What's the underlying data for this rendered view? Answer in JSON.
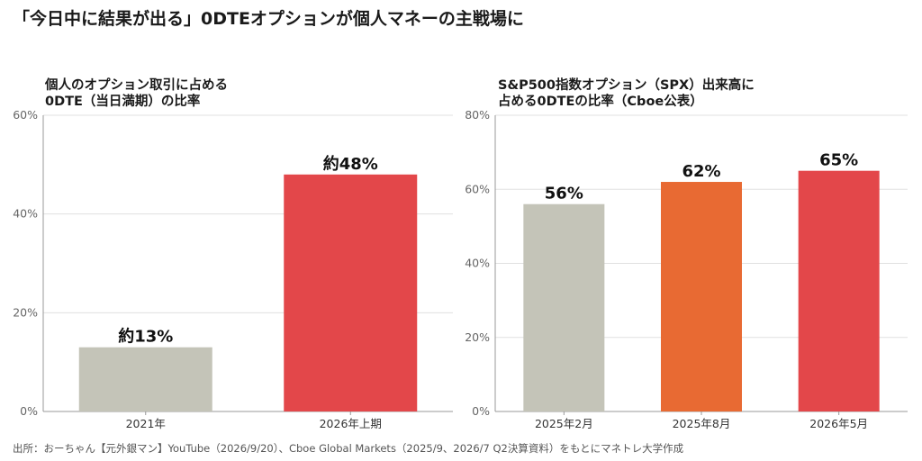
{
  "title": "「今日中に結果が出る」0DTEオプションが個人マネーの主戦場に",
  "source": "出所：おーちゃん【元外銀マン】YouTube（2026/9/20）、Cboe Global Markets（2025/9、2026/7 Q2決算資料）をもとにマネトレ大学作成",
  "colors": {
    "gray": "#c4c4b8",
    "orange": "#e86a33",
    "red": "#e3474a",
    "grid": "#e0e0e0",
    "axis": "#999999"
  },
  "chart_data": [
    {
      "type": "bar",
      "title_lines": [
        "個人のオプション取引に占める",
        "0DTE（当日満期）の比率"
      ],
      "categories": [
        "2021年",
        "2026年上期"
      ],
      "values": [
        13,
        48
      ],
      "data_labels": [
        "約13%",
        "約48%"
      ],
      "bar_colors": [
        "#c4c4b8",
        "#e3474a"
      ],
      "ylim": [
        0,
        60
      ],
      "yticks": [
        0,
        20,
        40,
        60
      ],
      "ytick_labels": [
        "0%",
        "20%",
        "40%",
        "60%"
      ],
      "grid": true
    },
    {
      "type": "bar",
      "title_lines": [
        "S&P500指数オプション（SPX）出来高に",
        "占める0DTEの比率（Cboe公表）"
      ],
      "categories": [
        "2025年2月",
        "2025年8月",
        "2026年5月"
      ],
      "values": [
        56,
        62,
        65
      ],
      "data_labels": [
        "56%",
        "62%",
        "65%"
      ],
      "bar_colors": [
        "#c4c4b8",
        "#e86a33",
        "#e3474a"
      ],
      "ylim": [
        0,
        80
      ],
      "yticks": [
        0,
        20,
        40,
        60,
        80
      ],
      "ytick_labels": [
        "0%",
        "20%",
        "40%",
        "60%",
        "80%"
      ],
      "grid": true
    }
  ]
}
